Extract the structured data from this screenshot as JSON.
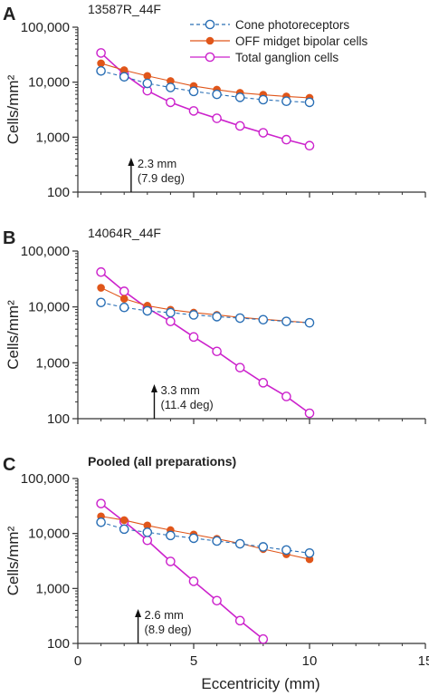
{
  "chart_data": [
    {
      "panel_letter": "A",
      "subtitle": "13587R_44F",
      "type": "line",
      "ylabel": "Cells/mm²",
      "yscale": "log",
      "ylim": [
        100,
        100000
      ],
      "xlim": [
        0,
        15
      ],
      "yticks": [
        100,
        1000,
        10000,
        100000
      ],
      "ytick_labels": [
        "100",
        "1,000",
        "10,000",
        "100,000"
      ],
      "legend_position": "top-right",
      "annotation": {
        "x": 2.3,
        "line1": "2.3 mm",
        "line2": "(7.9 deg)"
      },
      "series": [
        {
          "name": "Cone photoreceptors",
          "color": "#2a6fb5",
          "marker": "open-circle",
          "dashed": true,
          "x": [
            1,
            2,
            3,
            4,
            5,
            6,
            7,
            8,
            9,
            10
          ],
          "y": [
            16000,
            12500,
            9500,
            8000,
            6800,
            6000,
            5300,
            4800,
            4500,
            4300
          ]
        },
        {
          "name": "OFF midget bipolar cells",
          "color": "#e0561a",
          "marker": "filled-circle",
          "dashed": false,
          "x": [
            1,
            2,
            3,
            4,
            5,
            6,
            7,
            8,
            9,
            10
          ],
          "y": [
            22000,
            16500,
            13000,
            10500,
            8500,
            7300,
            6400,
            5900,
            5500,
            5200
          ]
        },
        {
          "name": "Total ganglion cells",
          "color": "#cc22cc",
          "marker": "open-circle",
          "dashed": false,
          "x": [
            1,
            2,
            3,
            4,
            5,
            6,
            7,
            8,
            9,
            10
          ],
          "y": [
            34000,
            14000,
            7000,
            4300,
            3000,
            2200,
            1600,
            1200,
            900,
            700
          ]
        }
      ]
    },
    {
      "panel_letter": "B",
      "subtitle": "14064R_44F",
      "type": "line",
      "ylabel": "Cells/mm²",
      "yscale": "log",
      "ylim": [
        100,
        100000
      ],
      "xlim": [
        0,
        15
      ],
      "yticks": [
        100,
        1000,
        10000,
        100000
      ],
      "ytick_labels": [
        "100",
        "1,000",
        "10,000",
        "100,000"
      ],
      "annotation": {
        "x": 3.3,
        "line1": "3.3 mm",
        "line2": "(11.4 deg)"
      },
      "series": [
        {
          "name": "Cone photoreceptors",
          "color": "#2a6fb5",
          "marker": "open-circle",
          "dashed": true,
          "x": [
            1,
            2,
            3,
            4,
            5,
            6,
            7,
            8,
            9,
            10
          ],
          "y": [
            12000,
            9800,
            8500,
            7900,
            7200,
            6700,
            6300,
            5900,
            5500,
            5200
          ]
        },
        {
          "name": "OFF midget bipolar cells",
          "color": "#e0561a",
          "marker": "filled-circle",
          "dashed": false,
          "x": [
            1,
            2,
            3,
            4,
            5,
            6,
            7,
            8,
            9,
            10
          ],
          "y": [
            22000,
            14000,
            10500,
            8900,
            7900,
            7200,
            6500,
            6000,
            5600,
            5200
          ]
        },
        {
          "name": "Total ganglion cells",
          "color": "#cc22cc",
          "marker": "open-circle",
          "dashed": false,
          "x": [
            1,
            2,
            3,
            4,
            5,
            6,
            7,
            8,
            9,
            10
          ],
          "y": [
            42000,
            19000,
            9500,
            5500,
            2900,
            1600,
            820,
            440,
            250,
            125
          ]
        }
      ]
    },
    {
      "panel_letter": "C",
      "subtitle": "Pooled (all preparations)",
      "type": "line",
      "xlabel": "Eccentricity (mm)",
      "ylabel": "Cells/mm²",
      "yscale": "log",
      "ylim": [
        100,
        100000
      ],
      "xlim": [
        0,
        15
      ],
      "yticks": [
        100,
        1000,
        10000,
        100000
      ],
      "ytick_labels": [
        "100",
        "1,000",
        "10,000",
        "100,000"
      ],
      "xticks": [
        0,
        5,
        10,
        15
      ],
      "xtick_labels": [
        "0",
        "5",
        "10",
        "15"
      ],
      "annotation": {
        "x": 2.6,
        "line1": "2.6 mm",
        "line2": "(8.9 deg)"
      },
      "series": [
        {
          "name": "Cone photoreceptors",
          "color": "#2a6fb5",
          "marker": "open-circle",
          "dashed": true,
          "x": [
            1,
            2,
            3,
            4,
            5,
            6,
            7,
            8,
            9,
            10
          ],
          "y": [
            16000,
            12000,
            10500,
            9200,
            8200,
            7300,
            6500,
            5700,
            5000,
            4400
          ]
        },
        {
          "name": "OFF midget bipolar cells",
          "color": "#e0561a",
          "marker": "filled-circle",
          "dashed": false,
          "x": [
            1,
            2,
            3,
            4,
            5,
            6,
            7,
            8,
            9,
            10
          ],
          "y": [
            20500,
            17500,
            14000,
            11500,
            9600,
            8000,
            6600,
            5200,
            4200,
            3400
          ]
        },
        {
          "name": "Total ganglion cells",
          "color": "#cc22cc",
          "marker": "open-circle",
          "dashed": false,
          "x": [
            1,
            2,
            3,
            4,
            5,
            6,
            7,
            8
          ],
          "y": [
            35000,
            16500,
            7500,
            3100,
            1350,
            600,
            260,
            120
          ]
        }
      ]
    }
  ]
}
